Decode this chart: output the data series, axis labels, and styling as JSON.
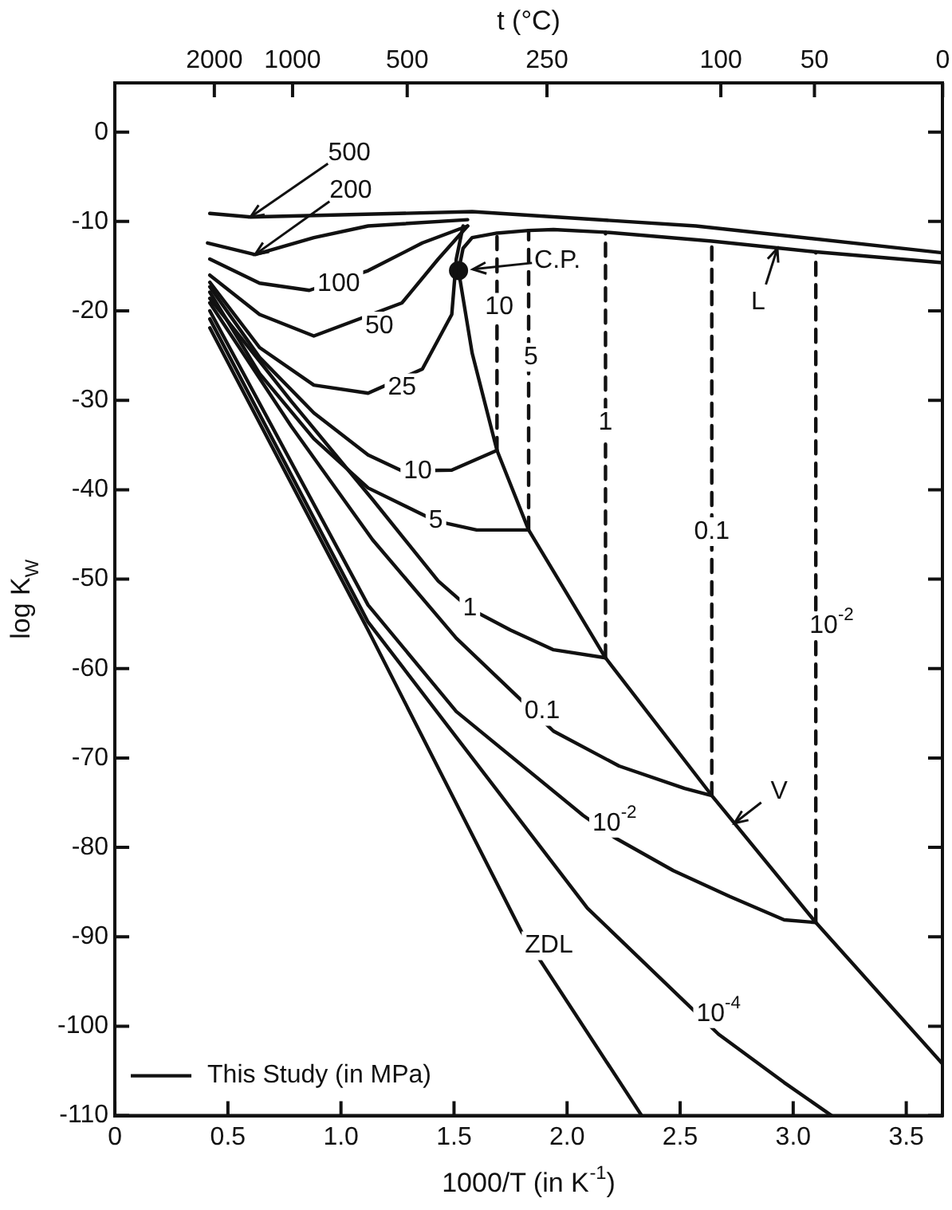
{
  "chart_data": {
    "type": "line",
    "xlabel": "1000/T (in K$^{-1}$)",
    "ylabel": "log K$_{W}$",
    "x2label": "t (°C)",
    "xlim": [
      0,
      3.66
    ],
    "xticks": [
      0,
      0.5,
      {
        "value": 1,
        "label": "1.0"
      },
      1.5,
      {
        "value": 2,
        "label": "2.0"
      },
      2.5,
      {
        "value": 3,
        "label": "3.0"
      },
      3.5
    ],
    "ylim": [
      -110,
      5.5
    ],
    "yticks": [
      0,
      -10,
      -20,
      -30,
      -40,
      -50,
      -60,
      -70,
      -80,
      -90,
      -100,
      -110
    ],
    "grid": false,
    "legend": "bottom left",
    "marker": "none",
    "line_style": "solid",
    "series": [
      {
        "name": "This Study (in MPa)",
        "color": "#111111",
        "x": [
          0.42,
          0.6,
          0.93,
          1.58,
          2.57,
          3.66
        ],
        "values": [
          -9.1,
          -9.5,
          -9.3,
          -8.9,
          -10.5,
          -13.5
        ]
      },
      {
        "color": "#111111",
        "x": [
          0.41,
          0.62,
          0.88,
          1.12,
          1.56
        ],
        "values": [
          -12.4,
          -13.7,
          -11.8,
          -10.5,
          -9.8
        ]
      },
      {
        "color": "#111111",
        "x": [
          0.42,
          0.64,
          0.86,
          1.12,
          1.36,
          1.56
        ],
        "values": [
          -14.2,
          -16.9,
          -17.7,
          -15.5,
          -12.4,
          -10.5
        ]
      },
      {
        "color": "#111111",
        "x": [
          0.42,
          0.64,
          0.88,
          1.27,
          1.43,
          1.56
        ],
        "values": [
          -16.0,
          -20.4,
          -22.8,
          -19.1,
          -14.2,
          -10.5
        ]
      },
      {
        "color": "#111111",
        "x": [
          0.42,
          0.64,
          0.88,
          1.12,
          1.36,
          1.49,
          1.51,
          1.54
        ],
        "values": [
          -16.8,
          -24.1,
          -28.3,
          -29.2,
          -26.5,
          -20.4,
          -14.2,
          -10.5
        ]
      },
      {
        "color": "#111111",
        "x": [
          0.42,
          0.64,
          0.88,
          1.12,
          1.27,
          1.49,
          1.69
        ],
        "values": [
          -17.3,
          -25.2,
          -31.4,
          -36.1,
          -37.9,
          -37.8,
          -35.6
        ]
      },
      {
        "color": "#111111",
        "x": [
          0.42,
          0.64,
          0.88,
          1.12,
          1.42,
          1.6,
          1.83
        ],
        "values": [
          -17.9,
          -27.0,
          -34.3,
          -39.8,
          -43.5,
          -44.5,
          -44.5
        ]
      },
      {
        "color": "#111111",
        "x": [
          0.42,
          0.78,
          1.14,
          1.43,
          1.57,
          1.75,
          1.94,
          2.17
        ],
        "values": [
          -18.6,
          -30.1,
          -41.1,
          -50.2,
          -53.3,
          -55.7,
          -57.9,
          -58.8
        ]
      },
      {
        "color": "#111111",
        "x": [
          0.42,
          0.78,
          1.14,
          1.51,
          1.8,
          1.94,
          2.23,
          2.52,
          2.64
        ],
        "values": [
          -19.1,
          -32.9,
          -45.6,
          -56.6,
          -63.6,
          -67.0,
          -70.9,
          -73.4,
          -74.2
        ]
      },
      {
        "color": "#111111",
        "x": [
          0.42,
          1.12,
          1.51,
          2.07,
          2.21,
          2.47,
          2.72,
          2.96,
          3.1
        ],
        "values": [
          -20.0,
          -52.9,
          -64.8,
          -76.4,
          -78.9,
          -82.6,
          -85.5,
          -88.1,
          -88.4
        ]
      },
      {
        "color": "#111111",
        "x": [
          0.42,
          1.12,
          2.09,
          2.67,
          2.96,
          3.17
        ],
        "values": [
          -20.9,
          -54.8,
          -86.8,
          -100.9,
          -106.3,
          -110
        ]
      },
      {
        "color": "#111111",
        "x": [
          0.42,
          1.12,
          1.8,
          2.33
        ],
        "values": [
          -21.9,
          -55.7,
          -89.5,
          -110
        ]
      },
      {
        "color": "#111111",
        "x": [
          1.52,
          1.58,
          1.69,
          1.83,
          2.17,
          2.64,
          3.1,
          3.66
        ],
        "values": [
          -15.5,
          -24.7,
          -35.6,
          -44.5,
          -58.8,
          -74.2,
          -88.4,
          -104.2
        ]
      },
      {
        "color": "#111111",
        "x": [
          1.52,
          1.54,
          1.58,
          1.69,
          1.83,
          1.94,
          2.17,
          2.64,
          3.1,
          3.66
        ],
        "values": [
          -15.5,
          -13.0,
          -11.8,
          -11.3,
          -11.0,
          -10.9,
          -11.2,
          -12.2,
          -13.4,
          -14.6
        ]
      },
      {
        "color": "#111111",
        "line_style": "dashed",
        "x": [
          1.69,
          1.69
        ],
        "values": [
          -35.6,
          -11.3
        ]
      },
      {
        "color": "#111111",
        "line_style": "dashed",
        "x": [
          1.83,
          1.83
        ],
        "values": [
          -44.5,
          -11.0
        ]
      },
      {
        "color": "#111111",
        "line_style": "dashed",
        "x": [
          2.17,
          2.17
        ],
        "values": [
          -58.8,
          -11.2
        ]
      },
      {
        "color": "#111111",
        "line_style": "dashed",
        "x": [
          2.64,
          2.64
        ],
        "values": [
          -74.2,
          -12.2
        ]
      },
      {
        "color": "#111111",
        "line_style": "dashed",
        "x": [
          3.1,
          3.1
        ],
        "values": [
          -88.4,
          -13.4
        ]
      },
      {
        "type": "scatter",
        "marker": "circle",
        "color": "#111111",
        "x": [
          1.52
        ],
        "values": [
          -15.5
        ]
      }
    ],
    "annotations": [
      {
        "text": "500",
        "x": 0.6,
        "y": -9.5
      },
      {
        "text": "200",
        "x": 0.62,
        "y": -13.7
      },
      {
        "text": "C.P.",
        "x": 1.52,
        "y": -15.5
      },
      {
        "text": "L",
        "x": 2.93,
        "y": -13.0
      },
      {
        "text": "V",
        "x": 2.74,
        "y": -77.3
      },
      {
        "text": "100",
        "x": 0.99,
        "y": -17.0
      },
      {
        "text": "50",
        "x": 1.17,
        "y": -21.7
      },
      {
        "text": "25",
        "x": 1.27,
        "y": -28.6
      },
      {
        "text": "10",
        "x": 1.34,
        "y": -37.9
      },
      {
        "text": "5",
        "x": 1.42,
        "y": -43.5
      },
      {
        "text": "1",
        "x": 1.57,
        "y": -53.3
      },
      {
        "text": "0.1",
        "x": 1.89,
        "y": -64.8
      },
      {
        "text": "10$^{-2}$",
        "x": 2.21,
        "y": -77.3
      },
      {
        "text": "10$^{-4}$",
        "x": 2.67,
        "y": -98.6
      },
      {
        "text": "ZDL",
        "x": 1.92,
        "y": -91.0
      },
      {
        "text": "10",
        "x": 1.7,
        "y": -19.6
      },
      {
        "text": "5",
        "x": 1.84,
        "y": -25.2
      },
      {
        "text": "1",
        "x": 2.17,
        "y": -32.5
      },
      {
        "text": "0.1",
        "x": 2.64,
        "y": -44.7
      },
      {
        "text": "10$^{-2}$",
        "x": 3.17,
        "y": -55.2
      },
      "2000",
      "1000",
      "500",
      "250",
      "100",
      "50",
      "0"
    ]
  }
}
